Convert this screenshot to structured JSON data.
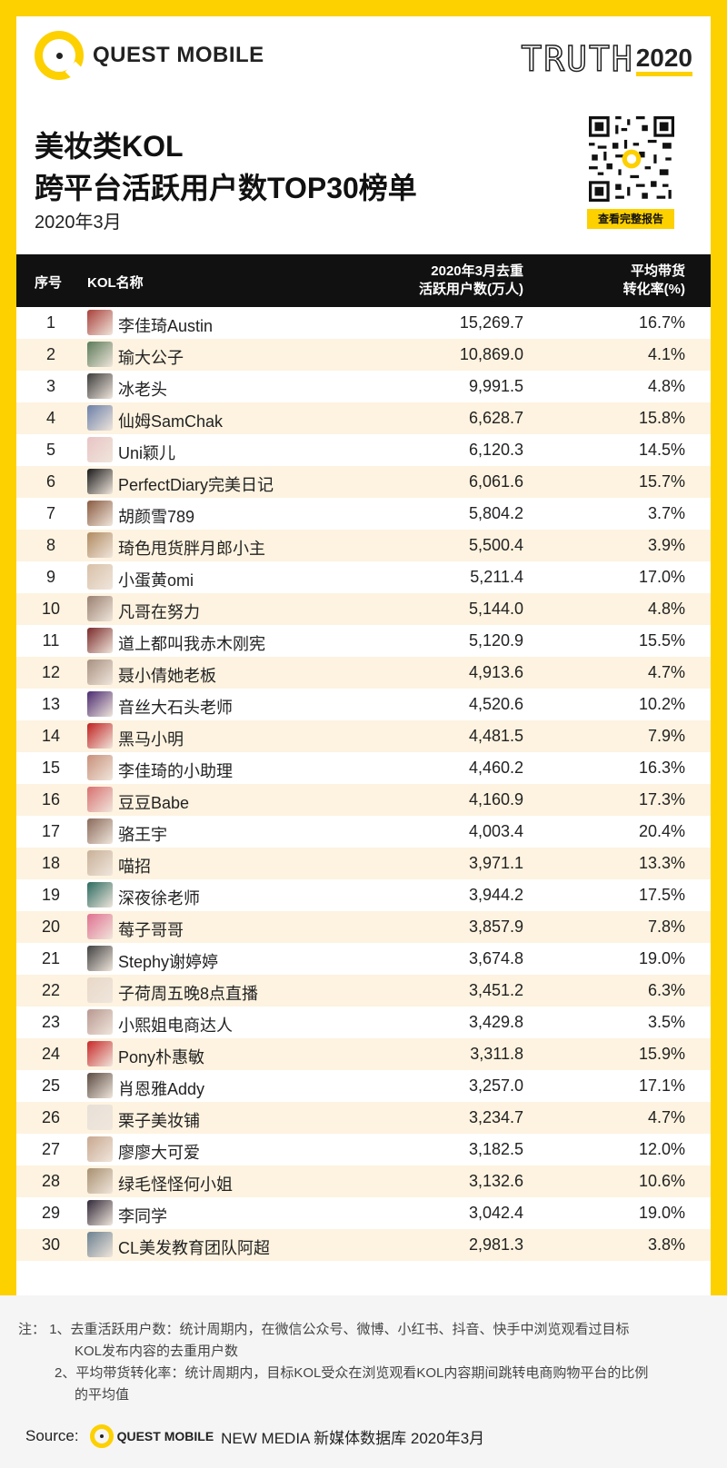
{
  "brand": {
    "name": "QUEST MOBILE",
    "truth_word": "TRUTH",
    "truth_year": "2020"
  },
  "title": {
    "line1": "美妆类KOL",
    "line2": "跨平台活跃用户数TOP30榜单",
    "date": "2020年3月"
  },
  "qr": {
    "button": "查看完整报告"
  },
  "table": {
    "headers": {
      "rank": "序号",
      "name": "KOL名称",
      "users_line1": "2020年3月去重",
      "users_line2": "活跃用户数(万人)",
      "conv_line1": "平均带货",
      "conv_line2": "转化率(%)"
    },
    "rows": [
      {
        "rank": "1",
        "name": "李佳琦Austin",
        "users": "15,269.7",
        "conv": "16.7%",
        "avatar": "#a8403a"
      },
      {
        "rank": "2",
        "name": "瑜大公子",
        "users": "10,869.0",
        "conv": "4.1%",
        "avatar": "#5a7a58"
      },
      {
        "rank": "3",
        "name": "冰老头",
        "users": "9,991.5",
        "conv": "4.8%",
        "avatar": "#3c3c3c"
      },
      {
        "rank": "4",
        "name": "仙姆SamChak",
        "users": "6,628.7",
        "conv": "15.8%",
        "avatar": "#6a7fa8"
      },
      {
        "rank": "5",
        "name": "Uni颖儿",
        "users": "6,120.3",
        "conv": "14.5%",
        "avatar": "#e8c4c4"
      },
      {
        "rank": "6",
        "name": "PerfectDiary完美日记",
        "users": "6,061.6",
        "conv": "15.7%",
        "avatar": "#1a1a1a"
      },
      {
        "rank": "7",
        "name": "胡颜雪789",
        "users": "5,804.2",
        "conv": "3.7%",
        "avatar": "#8a5a40"
      },
      {
        "rank": "8",
        "name": "琦色甩货胖月郎小主",
        "users": "5,500.4",
        "conv": "3.9%",
        "avatar": "#b08a60"
      },
      {
        "rank": "9",
        "name": "小蛋黄omi",
        "users": "5,211.4",
        "conv": "17.0%",
        "avatar": "#d8c0a8"
      },
      {
        "rank": "10",
        "name": "凡哥在努力",
        "users": "5,144.0",
        "conv": "4.8%",
        "avatar": "#9a8070"
      },
      {
        "rank": "11",
        "name": "道上都叫我赤木刚宪",
        "users": "5,120.9",
        "conv": "15.5%",
        "avatar": "#7a2a2a"
      },
      {
        "rank": "12",
        "name": "聂小倩她老板",
        "users": "4,913.6",
        "conv": "4.7%",
        "avatar": "#a89080"
      },
      {
        "rank": "13",
        "name": "音丝大石头老师",
        "users": "4,520.6",
        "conv": "10.2%",
        "avatar": "#4a2a70"
      },
      {
        "rank": "14",
        "name": "黑马小明",
        "users": "4,481.5",
        "conv": "7.9%",
        "avatar": "#c02020"
      },
      {
        "rank": "15",
        "name": "李佳琦的小助理",
        "users": "4,460.2",
        "conv": "16.3%",
        "avatar": "#c8907a"
      },
      {
        "rank": "16",
        "name": "豆豆Babe",
        "users": "4,160.9",
        "conv": "17.3%",
        "avatar": "#d87070"
      },
      {
        "rank": "17",
        "name": "骆王宇",
        "users": "4,003.4",
        "conv": "20.4%",
        "avatar": "#8a6a5a"
      },
      {
        "rank": "18",
        "name": "喵招",
        "users": "3,971.1",
        "conv": "13.3%",
        "avatar": "#c8b098"
      },
      {
        "rank": "19",
        "name": "深夜徐老师",
        "users": "3,944.2",
        "conv": "17.5%",
        "avatar": "#2a6a60"
      },
      {
        "rank": "20",
        "name": "莓子哥哥",
        "users": "3,857.9",
        "conv": "7.8%",
        "avatar": "#e07090"
      },
      {
        "rank": "21",
        "name": "Stephy谢婷婷",
        "users": "3,674.8",
        "conv": "19.0%",
        "avatar": "#404040"
      },
      {
        "rank": "22",
        "name": "子荷周五晚8点直播",
        "users": "3,451.2",
        "conv": "6.3%",
        "avatar": "#e8d8c8"
      },
      {
        "rank": "23",
        "name": "小熙姐电商达人",
        "users": "3,429.8",
        "conv": "3.5%",
        "avatar": "#b89890"
      },
      {
        "rank": "24",
        "name": "Pony朴惠敏",
        "users": "3,311.8",
        "conv": "15.9%",
        "avatar": "#c82828"
      },
      {
        "rank": "25",
        "name": "肖恩雅Addy",
        "users": "3,257.0",
        "conv": "17.1%",
        "avatar": "#5a4a40"
      },
      {
        "rank": "26",
        "name": "栗子美妆铺",
        "users": "3,234.7",
        "conv": "4.7%",
        "avatar": "#e8e0d8"
      },
      {
        "rank": "27",
        "name": "廖廖大可爱",
        "users": "3,182.5",
        "conv": "12.0%",
        "avatar": "#c8a890"
      },
      {
        "rank": "28",
        "name": "绿毛怪怪何小姐",
        "users": "3,132.6",
        "conv": "10.6%",
        "avatar": "#a89070"
      },
      {
        "rank": "29",
        "name": "李同学",
        "users": "3,042.4",
        "conv": "19.0%",
        "avatar": "#302838"
      },
      {
        "rank": "30",
        "name": "CL美发教育团队阿超",
        "users": "2,981.3",
        "conv": "3.8%",
        "avatar": "#6a8090"
      }
    ]
  },
  "notes": {
    "prefix": "注：",
    "n1a": "1、去重活跃用户数：统计周期内，在微信公众号、微博、小红书、抖音、快手中浏览观看过目标",
    "n1b": "KOL发布内容的去重用户数",
    "n2a": "2、平均带货转化率：统计周期内，目标KOL受众在浏览观看KOL内容期间跳转电商购物平台的比例",
    "n2b": "的平均值"
  },
  "source": {
    "label": "Source:",
    "logo_text": "QUEST MOBILE",
    "text": "NEW MEDIA 新媒体数据库 2020年3月"
  },
  "colors": {
    "accent": "#fdd000",
    "header_bg": "#111111",
    "alt_row": "#fdf3e0"
  }
}
